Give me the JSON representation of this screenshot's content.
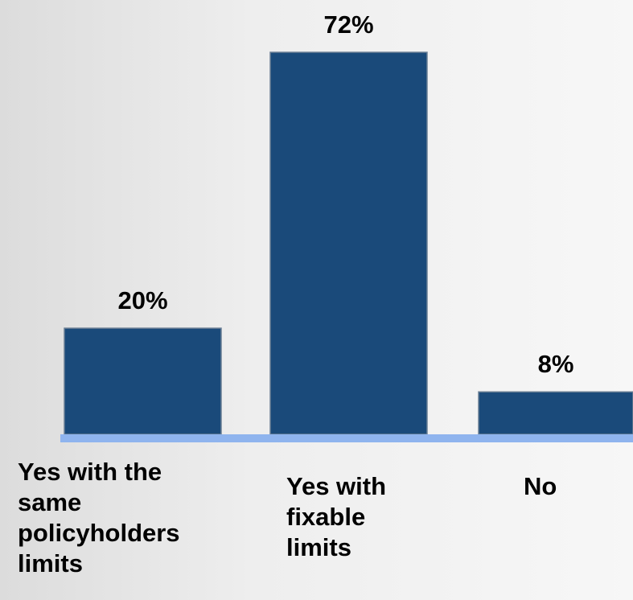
{
  "chart_data": {
    "type": "bar",
    "categories": [
      "Yes with the\nsame\npolicyholders\nlimits",
      "Yes with\nfixable\nlimits",
      "No"
    ],
    "values": [
      20,
      72,
      8
    ],
    "data_labels": [
      "20%",
      "72%",
      "8%"
    ],
    "ylim": [
      0,
      72
    ],
    "grid": false,
    "legend": "none"
  },
  "colors": {
    "bar_fill": "#1a4a7a",
    "bar_stroke": "#6b7f95",
    "baseline": "#8fb4ee",
    "label_text": "#000000"
  }
}
